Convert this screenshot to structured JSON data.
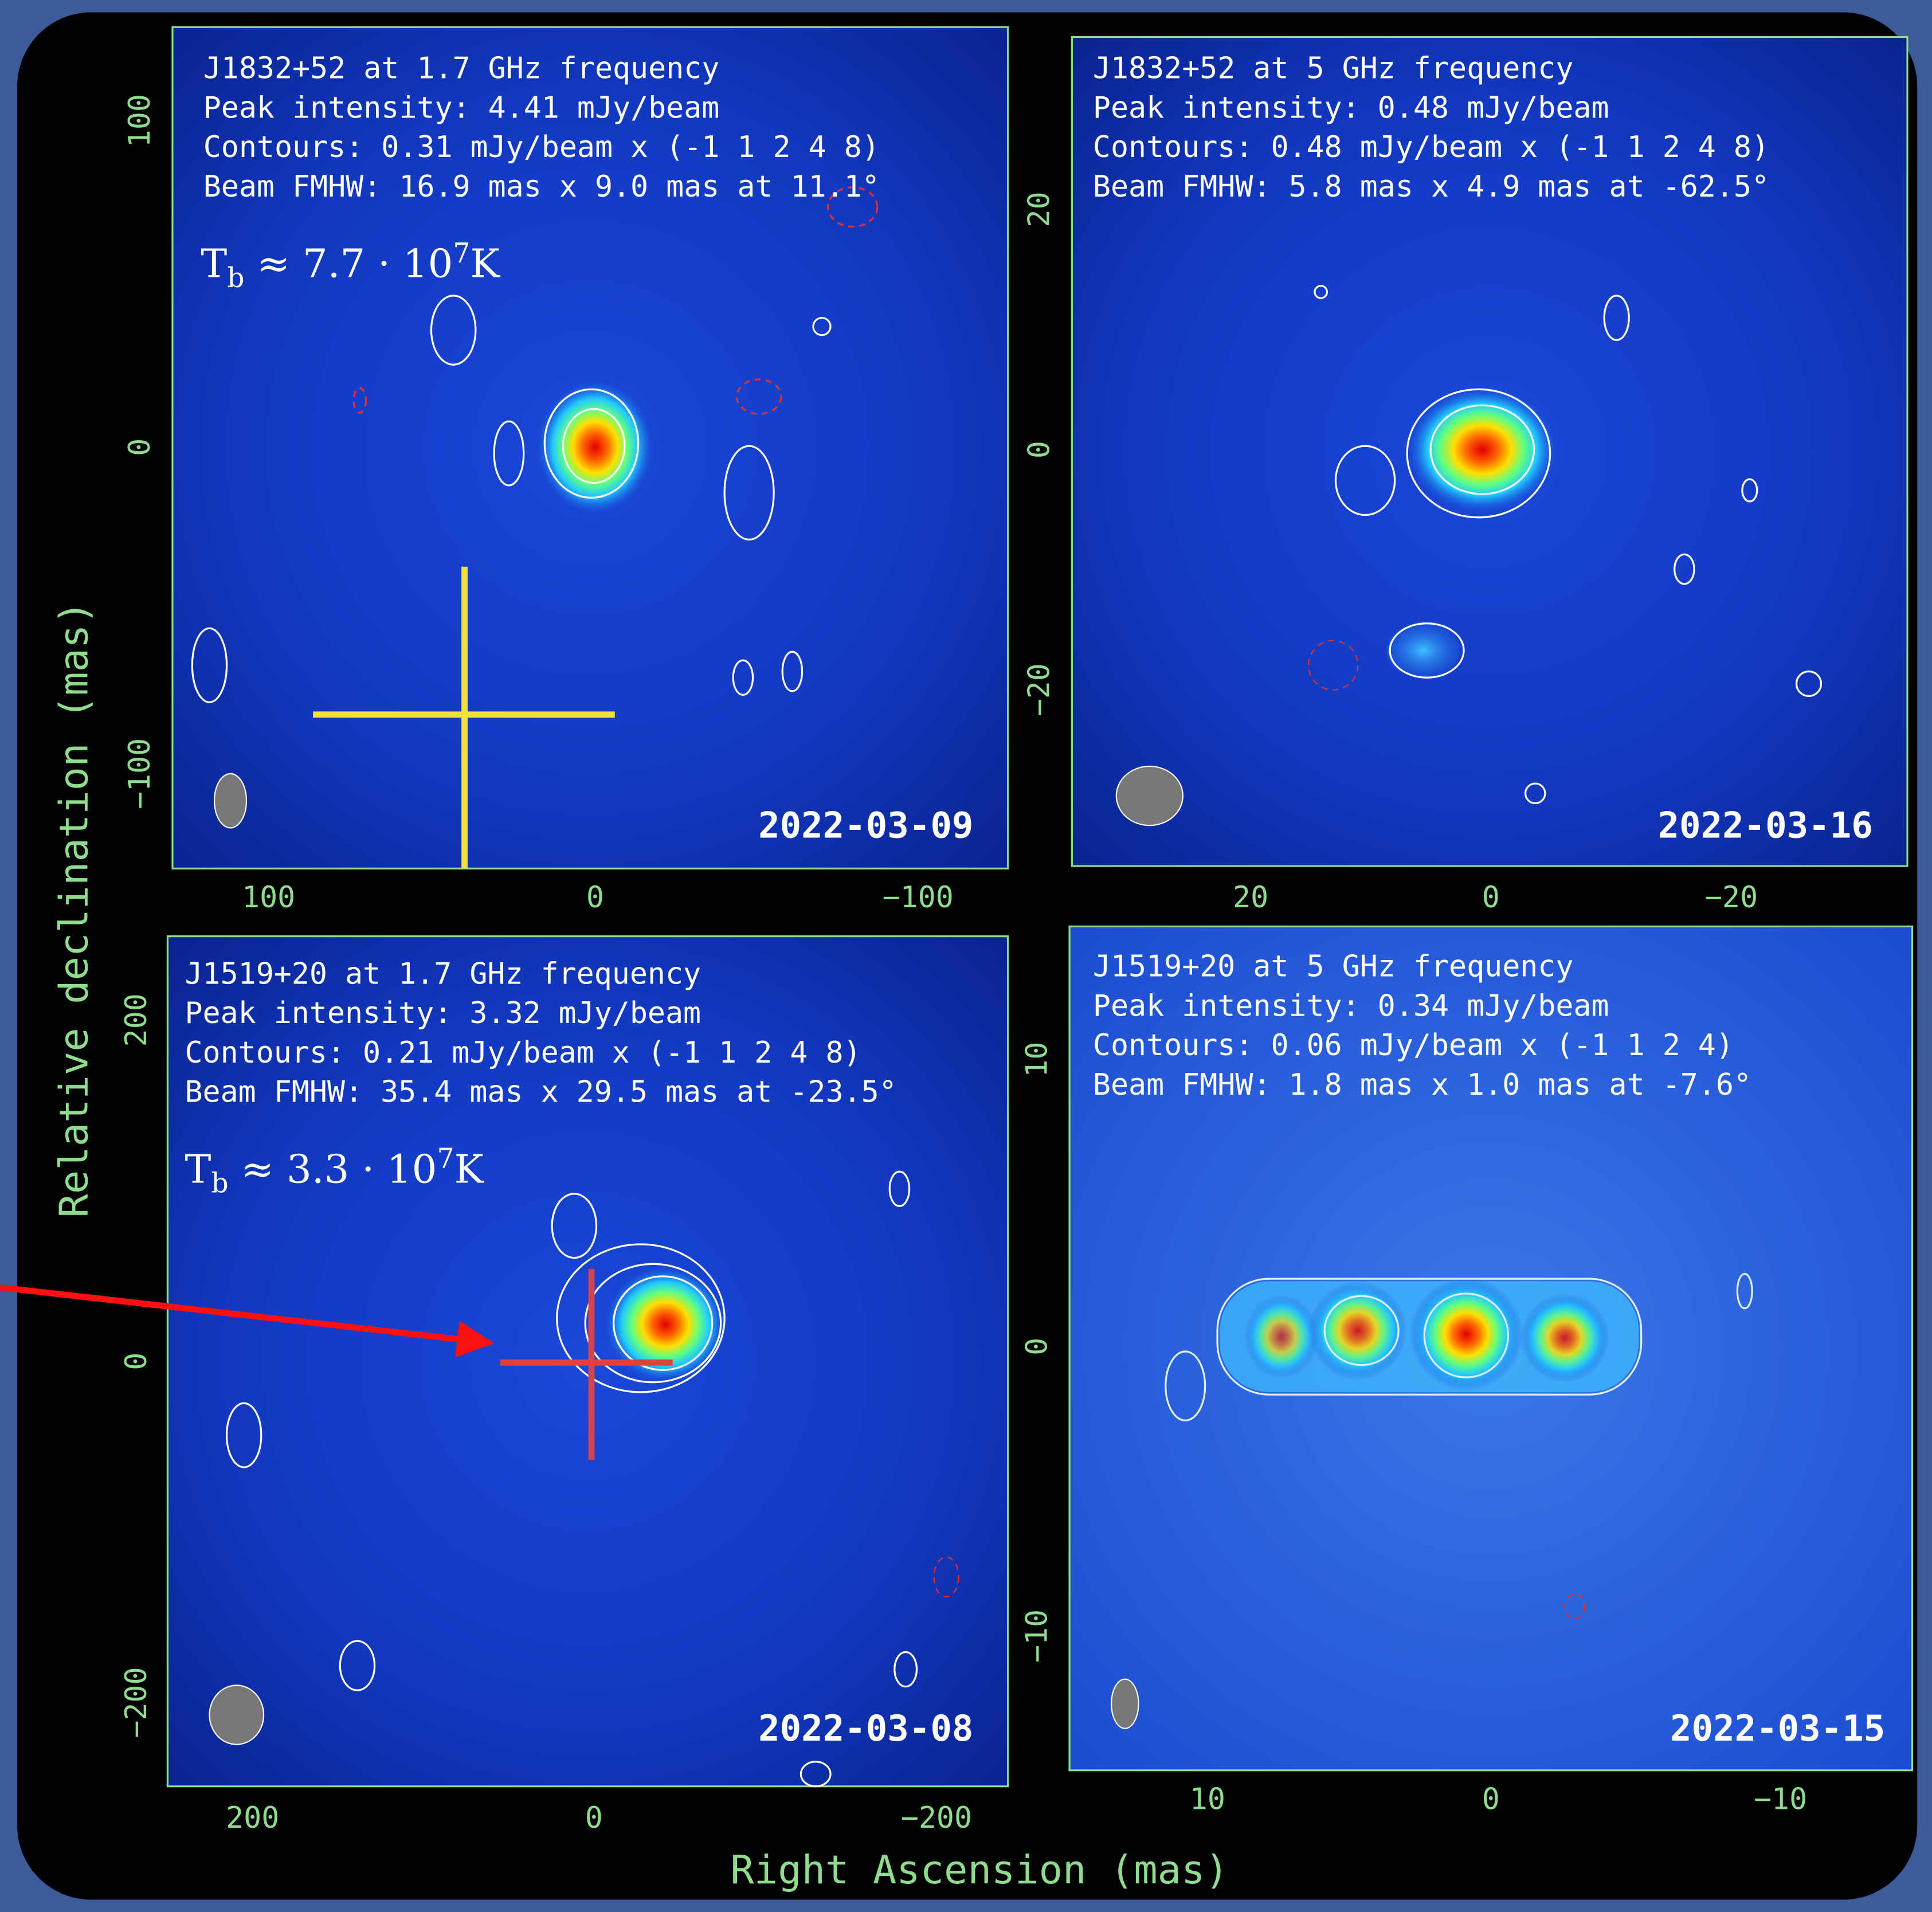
{
  "axis_labels": {
    "y": "Relative declination (mas)",
    "x": "Right Ascension (mas)"
  },
  "panels": [
    {
      "lines": [
        "J1832+52 at 1.7 GHz frequency",
        "Peak intensity: 4.41 mJy/beam",
        "Contours: 0.31 mJy/beam x (-1 1 2 4 8)",
        "Beam FMHW: 16.9 mas x 9.0 mas at 11.1°"
      ],
      "brightness_temperature": {
        "symbol": "T",
        "subscript": "b",
        "approx": " ≈ 7.7 · 10",
        "exponent": "7",
        "unit": "K"
      },
      "date": "2022-03-09",
      "x_tick_labels": [
        "100",
        "0",
        "−100"
      ],
      "y_tick_labels": [
        "100",
        "0",
        "−100"
      ]
    },
    {
      "lines": [
        "J1832+52 at 5 GHz frequency",
        "Peak intensity: 0.48 mJy/beam",
        "Contours: 0.48 mJy/beam x (-1 1 2 4 8)",
        "Beam FMHW: 5.8 mas x 4.9 mas at -62.5°"
      ],
      "date": "2022-03-16",
      "x_tick_labels": [
        "20",
        "0",
        "−20"
      ],
      "y_tick_labels": [
        "20",
        "0",
        "−20"
      ]
    },
    {
      "lines": [
        "J1519+20 at 1.7 GHz frequency",
        "Peak intensity: 3.32 mJy/beam",
        "Contours: 0.21 mJy/beam x (-1 1 2 4 8)",
        "Beam FMHW: 35.4 mas x 29.5 mas at -23.5°"
      ],
      "brightness_temperature": {
        "symbol": "T",
        "subscript": "b",
        "approx": " ≈ 3.3 · 10",
        "exponent": "7",
        "unit": "K"
      },
      "date": "2022-03-08",
      "x_tick_labels": [
        "200",
        "0",
        "−200"
      ],
      "y_tick_labels": [
        "200",
        "0",
        "−200"
      ]
    },
    {
      "lines": [
        "J1519+20 at 5 GHz frequency",
        "Peak intensity: 0.34 mJy/beam",
        "Contours: 0.06 mJy/beam x (-1 1 2 4)",
        "Beam FMHW: 1.8 mas x 1.0 mas at -7.6°"
      ],
      "date": "2022-03-15",
      "x_tick_labels": [
        "10",
        "0",
        "−10"
      ],
      "y_tick_labels": [
        "10",
        "0",
        "−10"
      ]
    }
  ]
}
